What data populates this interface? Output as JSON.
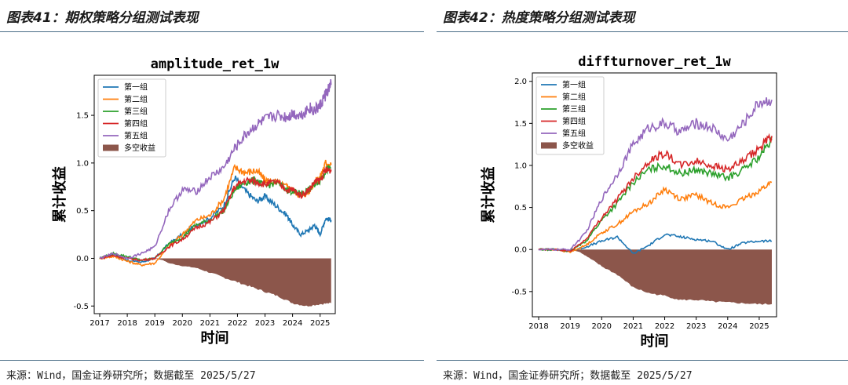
{
  "panels": [
    {
      "figure_title": "图表41：期权策略分组测试表现",
      "source": "来源：Wind，国金证券研究所；数据截至 2025/5/27"
    },
    {
      "figure_title": "图表42：热度策略分组测试表现",
      "source": "来源：Wind，国金证券研究所；数据截至 2025/5/27"
    }
  ],
  "chart_data": [
    {
      "type": "line",
      "title": "amplitude_ret_1w",
      "xlabel": "时间",
      "ylabel": "累计收益",
      "xlim": [
        2016.8,
        2025.55
      ],
      "ylim": [
        -0.58,
        1.92
      ],
      "x_ticks": [
        "2017",
        "2018",
        "2019",
        "2020",
        "2021",
        "2022",
        "2023",
        "2024",
        "2025"
      ],
      "y_ticks": [
        "-0.5",
        "0.0",
        "0.5",
        "1.0",
        "1.5"
      ],
      "grid": false,
      "legend": "top-left",
      "series": [
        {
          "name": "第一组",
          "color": "#1f77b4",
          "x": [
            2017.0,
            2017.5,
            2018.0,
            2018.5,
            2019.0,
            2019.5,
            2020.0,
            2020.5,
            2021.0,
            2021.5,
            2021.9,
            2022.3,
            2022.7,
            2023.0,
            2023.4,
            2023.8,
            2024.0,
            2024.3,
            2024.6,
            2024.8,
            2025.0,
            2025.2,
            2025.4
          ],
          "y": [
            0.0,
            0.04,
            -0.02,
            -0.04,
            0.0,
            0.15,
            0.25,
            0.35,
            0.42,
            0.55,
            0.85,
            0.7,
            0.6,
            0.65,
            0.55,
            0.45,
            0.35,
            0.25,
            0.3,
            0.35,
            0.25,
            0.42,
            0.4
          ]
        },
        {
          "name": "第二组",
          "color": "#ff7f0e",
          "x": [
            2017.0,
            2017.5,
            2018.0,
            2018.5,
            2019.0,
            2019.5,
            2020.0,
            2020.5,
            2021.0,
            2021.5,
            2021.9,
            2022.3,
            2022.7,
            2023.0,
            2023.4,
            2023.8,
            2024.0,
            2024.3,
            2024.6,
            2024.8,
            2025.0,
            2025.2,
            2025.4
          ],
          "y": [
            0.0,
            0.02,
            -0.03,
            -0.07,
            -0.05,
            0.12,
            0.25,
            0.4,
            0.45,
            0.62,
            0.95,
            0.9,
            0.92,
            0.82,
            0.8,
            0.75,
            0.72,
            0.65,
            0.7,
            0.8,
            0.85,
            1.0,
            0.98
          ]
        },
        {
          "name": "第三组",
          "color": "#2ca02c",
          "x": [
            2017.0,
            2017.5,
            2018.0,
            2018.5,
            2019.0,
            2019.5,
            2020.0,
            2020.5,
            2021.0,
            2021.5,
            2021.9,
            2022.3,
            2022.7,
            2023.0,
            2023.4,
            2023.8,
            2024.0,
            2024.3,
            2024.6,
            2024.8,
            2025.0,
            2025.2,
            2025.4
          ],
          "y": [
            0.0,
            0.05,
            0.02,
            -0.02,
            0.0,
            0.15,
            0.22,
            0.35,
            0.4,
            0.5,
            0.72,
            0.8,
            0.82,
            0.75,
            0.8,
            0.72,
            0.7,
            0.68,
            0.72,
            0.78,
            0.82,
            0.92,
            0.95
          ]
        },
        {
          "name": "第四组",
          "color": "#d62728",
          "x": [
            2017.0,
            2017.5,
            2018.0,
            2018.5,
            2019.0,
            2019.5,
            2020.0,
            2020.5,
            2021.0,
            2021.5,
            2021.9,
            2022.3,
            2022.7,
            2023.0,
            2023.4,
            2023.8,
            2024.0,
            2024.3,
            2024.6,
            2024.8,
            2025.0,
            2025.2,
            2025.4
          ],
          "y": [
            0.0,
            0.03,
            0.0,
            -0.02,
            0.0,
            0.12,
            0.2,
            0.32,
            0.38,
            0.5,
            0.75,
            0.82,
            0.8,
            0.78,
            0.8,
            0.72,
            0.72,
            0.66,
            0.72,
            0.8,
            0.82,
            0.92,
            0.93
          ]
        },
        {
          "name": "第五组",
          "color": "#9467bd",
          "x": [
            2017.0,
            2017.5,
            2018.0,
            2018.5,
            2019.0,
            2019.5,
            2020.0,
            2020.5,
            2021.0,
            2021.5,
            2021.9,
            2022.3,
            2022.7,
            2023.0,
            2023.4,
            2023.8,
            2024.0,
            2024.3,
            2024.6,
            2024.8,
            2025.0,
            2025.2,
            2025.4
          ],
          "y": [
            0.0,
            0.05,
            0.0,
            0.05,
            0.12,
            0.5,
            0.72,
            0.7,
            0.85,
            0.95,
            1.15,
            1.3,
            1.4,
            1.45,
            1.5,
            1.48,
            1.52,
            1.5,
            1.58,
            1.55,
            1.6,
            1.72,
            1.82
          ]
        }
      ],
      "long_short": {
        "name": "多空收益",
        "color": "#8c564b",
        "x": [
          2017.0,
          2017.5,
          2018.0,
          2018.5,
          2019.0,
          2019.3,
          2019.5,
          2020.0,
          2020.5,
          2021.0,
          2021.5,
          2022.0,
          2022.5,
          2023.0,
          2023.5,
          2024.0,
          2024.5,
          2025.0,
          2025.4
        ],
        "y": [
          0.0,
          0.0,
          0.0,
          0.0,
          0.0,
          -0.02,
          -0.05,
          -0.08,
          -0.1,
          -0.15,
          -0.2,
          -0.25,
          -0.3,
          -0.35,
          -0.4,
          -0.47,
          -0.5,
          -0.48,
          -0.47
        ]
      }
    },
    {
      "type": "line",
      "title": "diffturnover_ret_1w",
      "xlabel": "时间",
      "ylabel": "累计收益",
      "xlim": [
        2017.8,
        2025.55
      ],
      "ylim": [
        -0.8,
        2.1
      ],
      "x_ticks": [
        "2018",
        "2019",
        "2020",
        "2021",
        "2022",
        "2023",
        "2024",
        "2025"
      ],
      "y_ticks": [
        "-0.5",
        "0.0",
        "0.5",
        "1.0",
        "1.5",
        "2.0"
      ],
      "grid": false,
      "legend": "top-left",
      "series": [
        {
          "name": "第一组",
          "color": "#1f77b4",
          "x": [
            2018.0,
            2018.5,
            2019.0,
            2019.5,
            2020.0,
            2020.5,
            2021.0,
            2021.5,
            2022.0,
            2022.5,
            2023.0,
            2023.5,
            2024.0,
            2024.5,
            2025.0,
            2025.4
          ],
          "y": [
            0.0,
            0.0,
            -0.02,
            0.03,
            0.1,
            0.15,
            -0.05,
            0.05,
            0.18,
            0.15,
            0.12,
            0.1,
            0.0,
            0.08,
            0.1,
            0.1
          ]
        },
        {
          "name": "第二组",
          "color": "#ff7f0e",
          "x": [
            2018.0,
            2018.5,
            2019.0,
            2019.5,
            2020.0,
            2020.5,
            2021.0,
            2021.5,
            2022.0,
            2022.5,
            2023.0,
            2023.5,
            2024.0,
            2024.5,
            2025.0,
            2025.4
          ],
          "y": [
            0.0,
            0.0,
            -0.03,
            0.05,
            0.2,
            0.3,
            0.45,
            0.55,
            0.72,
            0.6,
            0.65,
            0.55,
            0.5,
            0.6,
            0.7,
            0.8
          ]
        },
        {
          "name": "第三组",
          "color": "#2ca02c",
          "x": [
            2018.0,
            2018.5,
            2019.0,
            2019.5,
            2020.0,
            2020.5,
            2021.0,
            2021.5,
            2022.0,
            2022.5,
            2023.0,
            2023.5,
            2024.0,
            2024.5,
            2025.0,
            2025.4
          ],
          "y": [
            0.0,
            0.0,
            -0.02,
            0.1,
            0.35,
            0.55,
            0.8,
            0.95,
            1.0,
            0.9,
            0.95,
            0.9,
            0.85,
            0.95,
            1.1,
            1.3
          ]
        },
        {
          "name": "第四组",
          "color": "#d62728",
          "x": [
            2018.0,
            2018.5,
            2019.0,
            2019.5,
            2020.0,
            2020.5,
            2021.0,
            2021.5,
            2022.0,
            2022.5,
            2023.0,
            2023.5,
            2024.0,
            2024.5,
            2025.0,
            2025.4
          ],
          "y": [
            0.0,
            0.0,
            -0.02,
            0.12,
            0.38,
            0.6,
            0.85,
            1.05,
            1.15,
            1.0,
            1.05,
            1.0,
            0.95,
            1.05,
            1.2,
            1.35
          ]
        },
        {
          "name": "第五组",
          "color": "#9467bd",
          "x": [
            2018.0,
            2018.5,
            2019.0,
            2019.5,
            2020.0,
            2020.5,
            2021.0,
            2021.5,
            2022.0,
            2022.5,
            2023.0,
            2023.5,
            2024.0,
            2024.5,
            2025.0,
            2025.4
          ],
          "y": [
            0.0,
            0.0,
            0.0,
            0.2,
            0.6,
            0.9,
            1.25,
            1.45,
            1.5,
            1.4,
            1.5,
            1.45,
            1.3,
            1.5,
            1.75,
            1.78
          ]
        }
      ],
      "long_short": {
        "name": "多空收益",
        "color": "#8c564b",
        "x": [
          2018.0,
          2018.5,
          2019.0,
          2019.3,
          2019.6,
          2020.0,
          2020.5,
          2021.0,
          2021.5,
          2022.0,
          2022.5,
          2023.0,
          2023.5,
          2024.0,
          2024.5,
          2025.0,
          2025.4
        ],
        "y": [
          0.0,
          0.0,
          0.0,
          -0.03,
          -0.1,
          -0.2,
          -0.3,
          -0.45,
          -0.52,
          -0.55,
          -0.6,
          -0.6,
          -0.62,
          -0.63,
          -0.64,
          -0.65,
          -0.65
        ]
      }
    }
  ]
}
